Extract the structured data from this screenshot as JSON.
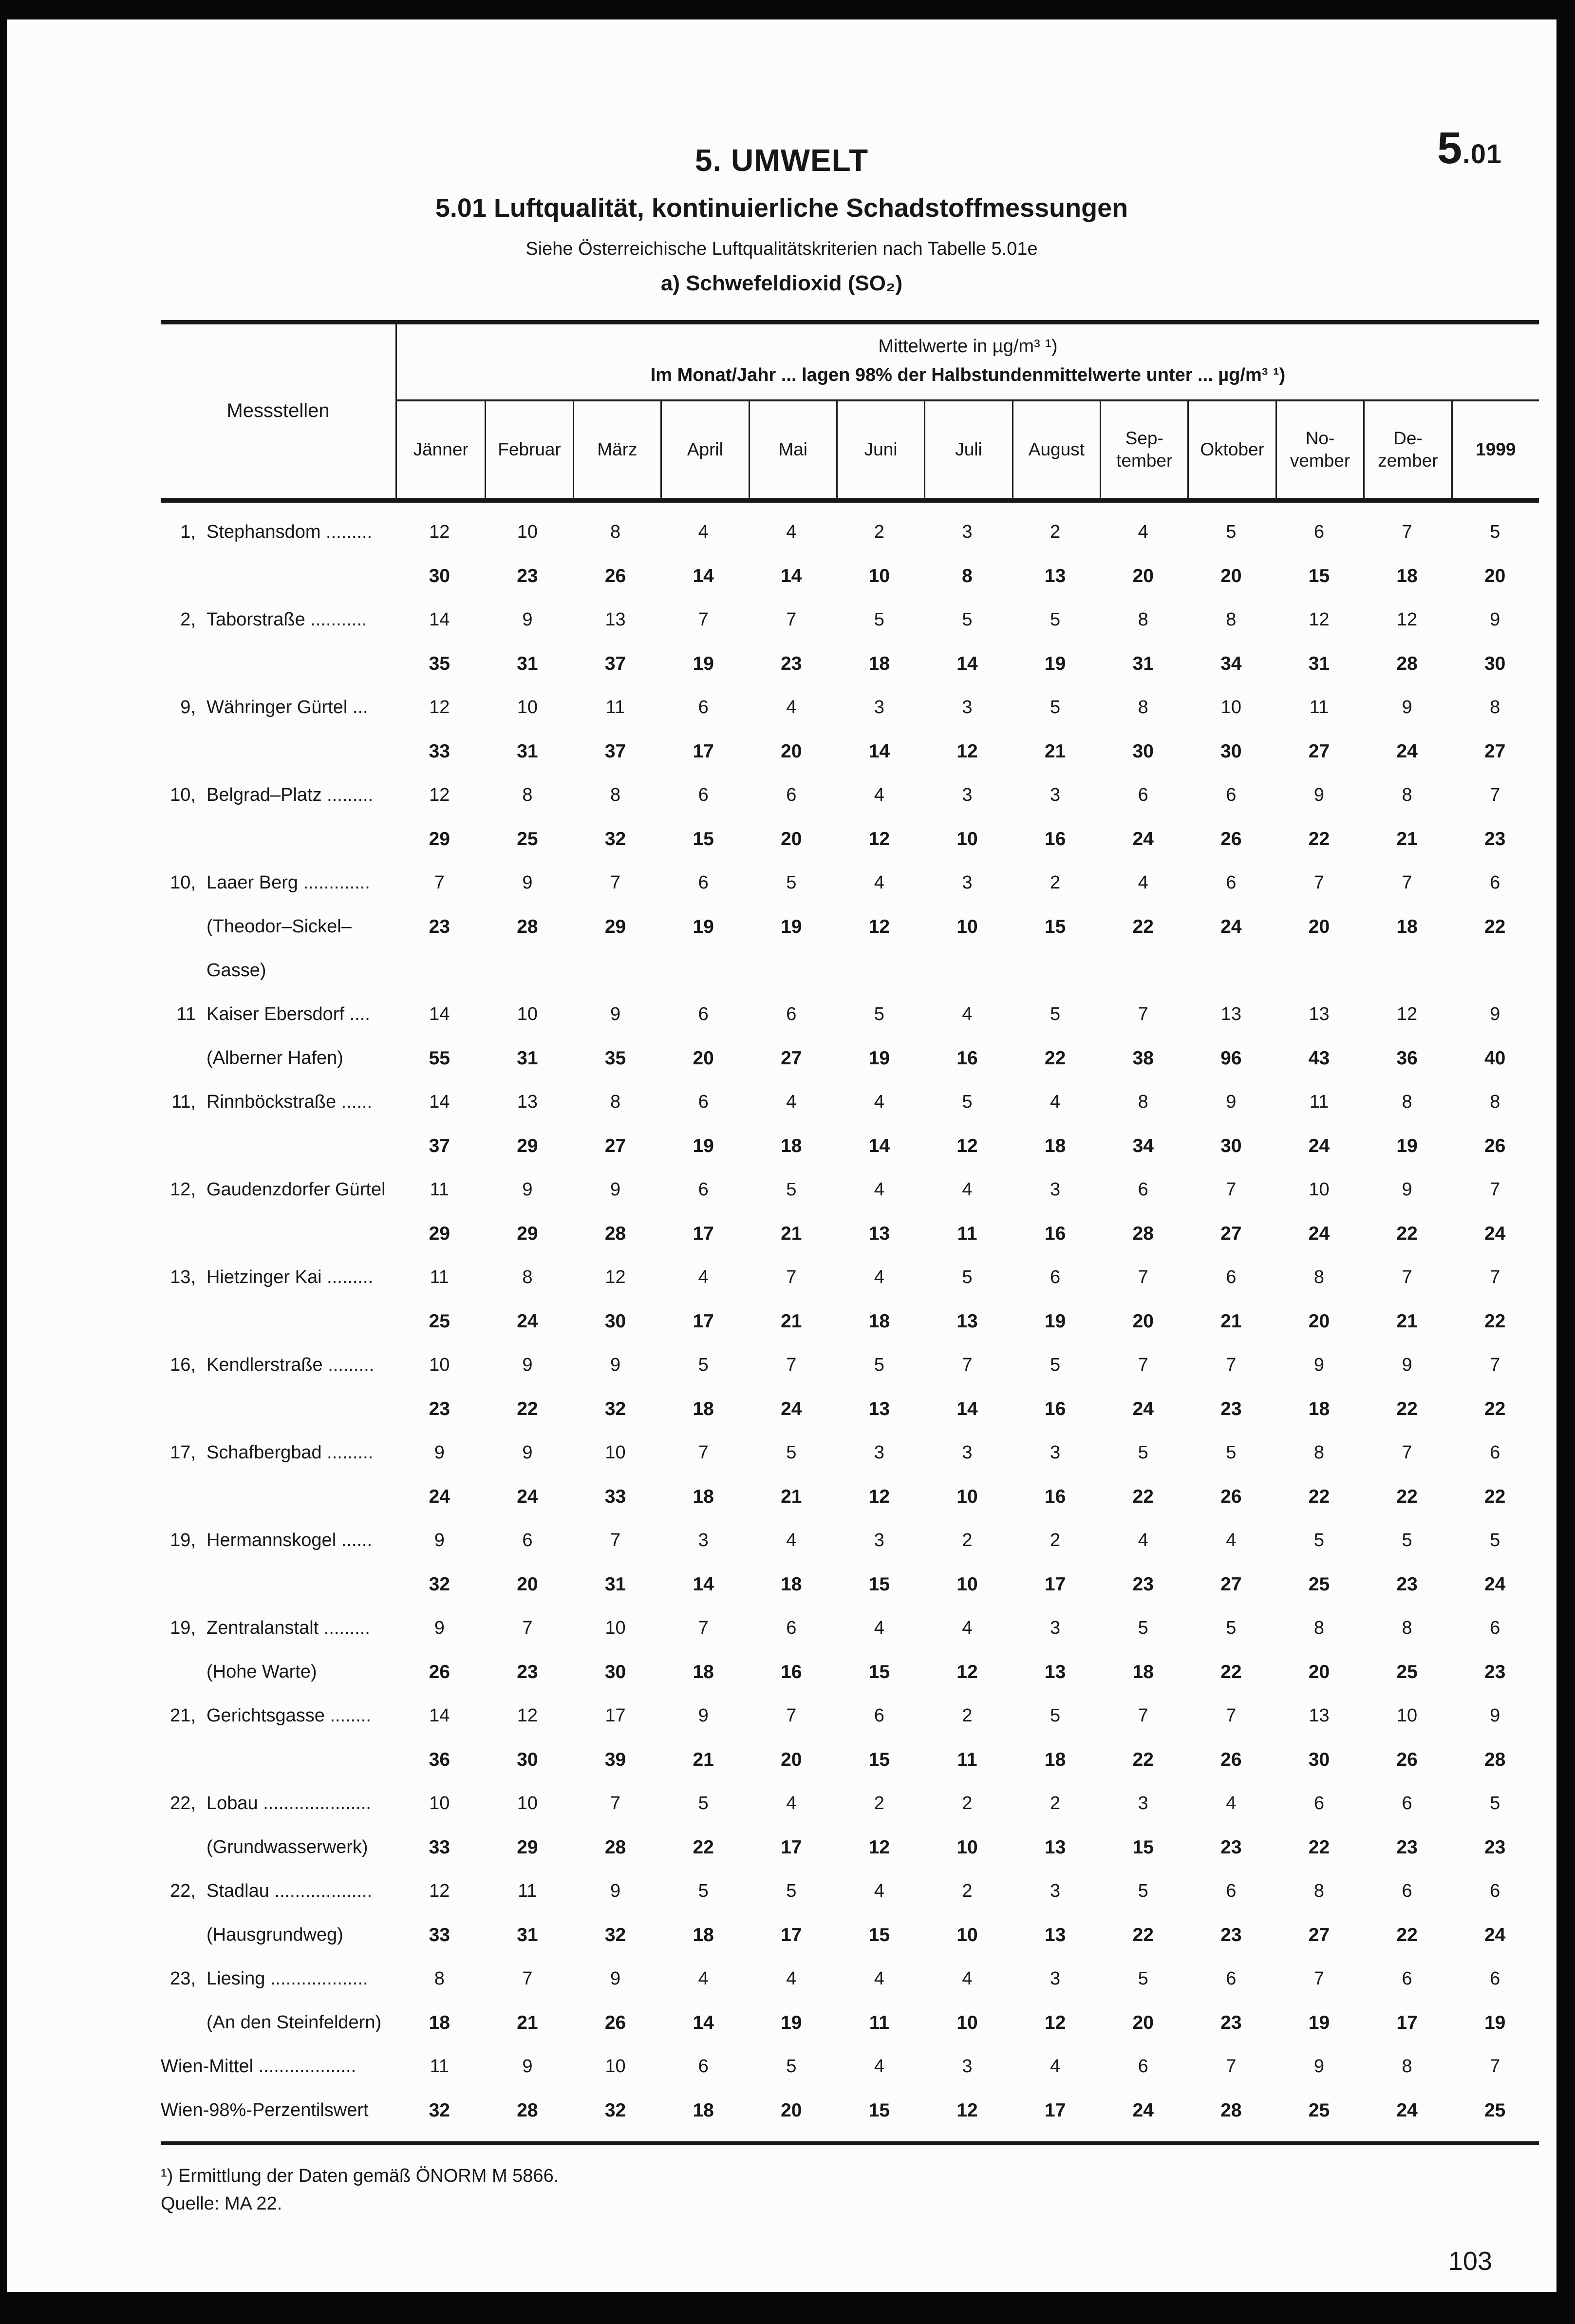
{
  "page": {
    "corner_tag_big": "5",
    "corner_tag_small": ".01",
    "chapter_title": "5. UMWELT",
    "table_title": "5.01 Luftqualität, kontinuierliche Schadstoffmessungen",
    "subtitle": "Siehe Österreichische Luftqualitätskriterien nach Tabelle 5.01e",
    "section_label": "a) Schwefeldioxid (SO₂)",
    "page_number": "103"
  },
  "table": {
    "row_header": "Messstellen",
    "group_header_line1": "Mittelwerte in µg/m³ ¹)",
    "group_header_line2": "Im Monat/Jahr ... lagen 98% der Halbstundenmittelwerte unter ... µg/m³ ¹)",
    "columns": [
      "Jänner",
      "Februar",
      "März",
      "April",
      "Mai",
      "Juni",
      "Juli",
      "August",
      "Sep-\ntember",
      "Oktober",
      "No-\nvember",
      "De-\nzember",
      "1999"
    ],
    "rows": [
      {
        "num": "1,",
        "name": "Stephansdom .........",
        "avg": [
          12,
          10,
          8,
          4,
          4,
          2,
          3,
          2,
          4,
          5,
          6,
          7,
          5
        ],
        "p98": [
          30,
          23,
          26,
          14,
          14,
          10,
          8,
          13,
          20,
          20,
          15,
          18,
          20
        ]
      },
      {
        "num": "2,",
        "name": "Taborstraße ...........",
        "avg": [
          14,
          9,
          13,
          7,
          7,
          5,
          5,
          5,
          8,
          8,
          12,
          12,
          9
        ],
        "p98": [
          35,
          31,
          37,
          19,
          23,
          18,
          14,
          19,
          31,
          34,
          31,
          28,
          30
        ]
      },
      {
        "num": "9,",
        "name": "Währinger Gürtel ...",
        "avg": [
          12,
          10,
          11,
          6,
          4,
          3,
          3,
          5,
          8,
          10,
          11,
          9,
          8
        ],
        "p98": [
          33,
          31,
          37,
          17,
          20,
          14,
          12,
          21,
          30,
          30,
          27,
          24,
          27
        ]
      },
      {
        "num": "10,",
        "name": "Belgrad–Platz .........",
        "avg": [
          12,
          8,
          8,
          6,
          6,
          4,
          3,
          3,
          6,
          6,
          9,
          8,
          7
        ],
        "p98": [
          29,
          25,
          32,
          15,
          20,
          12,
          10,
          16,
          24,
          26,
          22,
          21,
          23
        ]
      },
      {
        "num": "10,",
        "name": "Laaer Berg .............",
        "sub": "(Theodor–Sickel–",
        "sub2": "Gasse)",
        "avg": [
          7,
          9,
          7,
          6,
          5,
          4,
          3,
          2,
          4,
          6,
          7,
          7,
          6
        ],
        "p98": [
          23,
          28,
          29,
          19,
          19,
          12,
          10,
          15,
          22,
          24,
          20,
          18,
          22
        ]
      },
      {
        "num": "11",
        "name": "Kaiser Ebersdorf ....",
        "sub": "(Alberner Hafen)",
        "avg": [
          14,
          10,
          9,
          6,
          6,
          5,
          4,
          5,
          7,
          13,
          13,
          12,
          9
        ],
        "p98": [
          55,
          31,
          35,
          20,
          27,
          19,
          16,
          22,
          38,
          96,
          43,
          36,
          40
        ]
      },
      {
        "num": "11,",
        "name": "Rinnböckstraße ......",
        "avg": [
          14,
          13,
          8,
          6,
          4,
          4,
          5,
          4,
          8,
          9,
          11,
          8,
          8
        ],
        "p98": [
          37,
          29,
          27,
          19,
          18,
          14,
          12,
          18,
          34,
          30,
          24,
          19,
          26
        ]
      },
      {
        "num": "12,",
        "name": "Gaudenzdorfer Gürtel",
        "avg": [
          11,
          9,
          9,
          6,
          5,
          4,
          4,
          3,
          6,
          7,
          10,
          9,
          7
        ],
        "p98": [
          29,
          29,
          28,
          17,
          21,
          13,
          11,
          16,
          28,
          27,
          24,
          22,
          24
        ]
      },
      {
        "num": "13,",
        "name": "Hietzinger Kai .........",
        "avg": [
          11,
          8,
          12,
          4,
          7,
          4,
          5,
          6,
          7,
          6,
          8,
          7,
          7
        ],
        "p98": [
          25,
          24,
          30,
          17,
          21,
          18,
          13,
          19,
          20,
          21,
          20,
          21,
          22
        ]
      },
      {
        "num": "16,",
        "name": "Kendlerstraße .........",
        "avg": [
          10,
          9,
          9,
          5,
          7,
          5,
          7,
          5,
          7,
          7,
          9,
          9,
          7
        ],
        "p98": [
          23,
          22,
          32,
          18,
          24,
          13,
          14,
          16,
          24,
          23,
          18,
          22,
          22
        ]
      },
      {
        "num": "17,",
        "name": "Schafbergbad .........",
        "avg": [
          9,
          9,
          10,
          7,
          5,
          3,
          3,
          3,
          5,
          5,
          8,
          7,
          6
        ],
        "p98": [
          24,
          24,
          33,
          18,
          21,
          12,
          10,
          16,
          22,
          26,
          22,
          22,
          22
        ]
      },
      {
        "num": "19,",
        "name": "Hermannskogel ......",
        "avg": [
          9,
          6,
          7,
          3,
          4,
          3,
          2,
          2,
          4,
          4,
          5,
          5,
          5
        ],
        "p98": [
          32,
          20,
          31,
          14,
          18,
          15,
          10,
          17,
          23,
          27,
          25,
          23,
          24
        ]
      },
      {
        "num": "19,",
        "name": "Zentralanstalt .........",
        "sub": "(Hohe Warte)",
        "avg": [
          9,
          7,
          10,
          7,
          6,
          4,
          4,
          3,
          5,
          5,
          8,
          8,
          6
        ],
        "p98": [
          26,
          23,
          30,
          18,
          16,
          15,
          12,
          13,
          18,
          22,
          20,
          25,
          23
        ]
      },
      {
        "num": "21,",
        "name": "Gerichtsgasse ........",
        "avg": [
          14,
          12,
          17,
          9,
          7,
          6,
          2,
          5,
          7,
          7,
          13,
          10,
          9
        ],
        "p98": [
          36,
          30,
          39,
          21,
          20,
          15,
          11,
          18,
          22,
          26,
          30,
          26,
          28
        ]
      },
      {
        "num": "22,",
        "name": "Lobau .....................",
        "sub": "(Grundwasserwerk)",
        "avg": [
          10,
          10,
          7,
          5,
          4,
          2,
          2,
          2,
          3,
          4,
          6,
          6,
          5
        ],
        "p98": [
          33,
          29,
          28,
          22,
          17,
          12,
          10,
          13,
          15,
          23,
          22,
          23,
          23
        ]
      },
      {
        "num": "22,",
        "name": "Stadlau ...................",
        "sub": "(Hausgrundweg)",
        "avg": [
          12,
          11,
          9,
          5,
          5,
          4,
          2,
          3,
          5,
          6,
          8,
          6,
          6
        ],
        "p98": [
          33,
          31,
          32,
          18,
          17,
          15,
          10,
          13,
          22,
          23,
          27,
          22,
          24
        ]
      },
      {
        "num": "23,",
        "name": "Liesing ...................",
        "sub": "(An den Steinfeldern)",
        "avg": [
          8,
          7,
          9,
          4,
          4,
          4,
          4,
          3,
          5,
          6,
          7,
          6,
          6
        ],
        "p98": [
          18,
          21,
          26,
          14,
          19,
          11,
          10,
          12,
          20,
          23,
          19,
          17,
          19
        ]
      },
      {
        "num": "",
        "name": "Wien-Mittel ...................",
        "avg": [
          11,
          9,
          10,
          6,
          5,
          4,
          3,
          4,
          6,
          7,
          9,
          8,
          7
        ]
      },
      {
        "num": "",
        "name": "Wien-98%-Perzentilswert",
        "p98": [
          32,
          28,
          32,
          18,
          20,
          15,
          12,
          17,
          24,
          28,
          25,
          24,
          25
        ]
      }
    ]
  },
  "footnotes": {
    "line1": "¹) Ermittlung der Daten gemäß ÖNORM M 5866.",
    "line2": "Quelle: MA 22."
  }
}
